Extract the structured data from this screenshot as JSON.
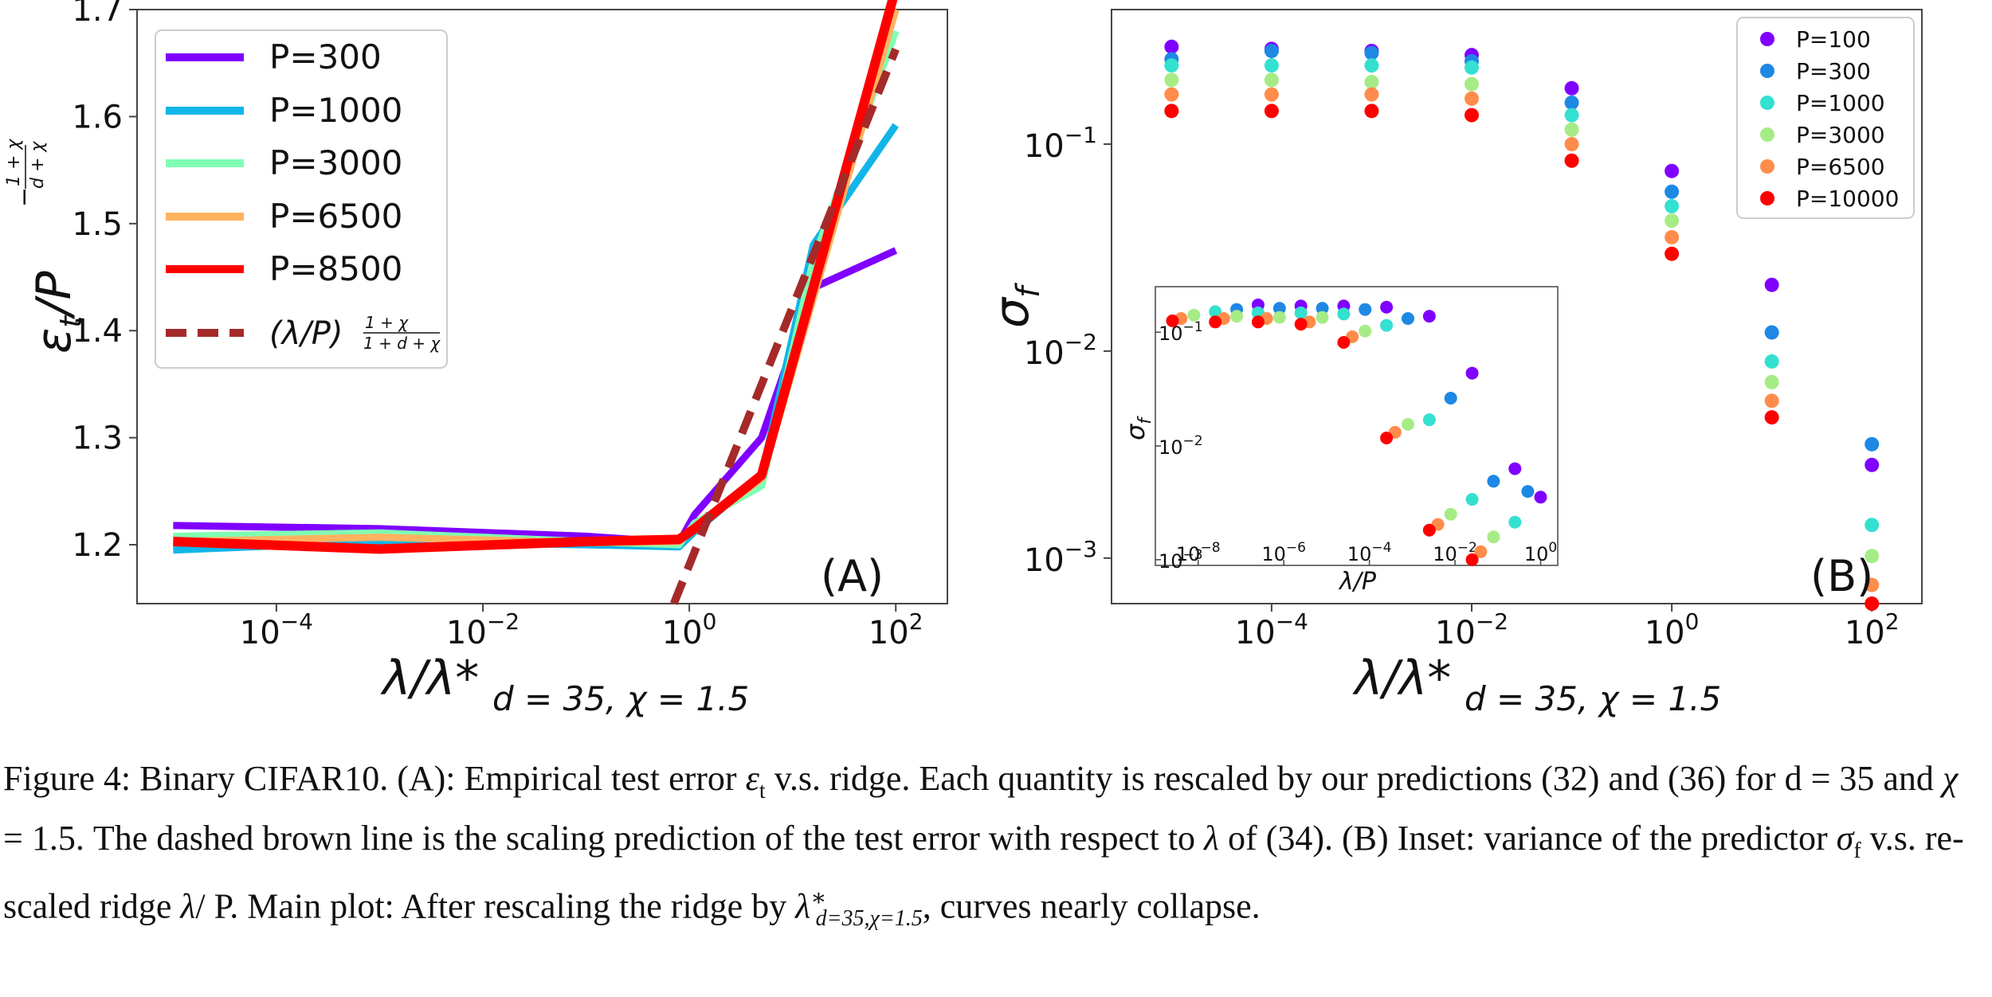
{
  "chart_data": [
    {
      "type": "line",
      "panel_label": "(A)",
      "xlabel": "λ/λ*",
      "xlabel_sub": "d = 35, χ = 1.5",
      "ylabel": "ε",
      "ylabel_sub": "t",
      "ylabel_den": "/P",
      "ylabel_exp_num": "1 + χ",
      "ylabel_exp_den": "d + χ",
      "xscale": "log",
      "xlim_exp": [
        -5.35,
        2.5
      ],
      "ylim": [
        1.145,
        1.7
      ],
      "xticks": [
        {
          "base": "10",
          "exp": "−4",
          "v": -4
        },
        {
          "base": "10",
          "exp": "−2",
          "v": -2
        },
        {
          "base": "10",
          "exp": "0",
          "v": 0
        },
        {
          "base": "10",
          "exp": "2",
          "v": 2
        }
      ],
      "yticks": [
        "1.2",
        "1.3",
        "1.4",
        "1.5",
        "1.6",
        "1.7"
      ],
      "legend_position": "top-left",
      "series": [
        {
          "name": "P=300",
          "color": "#7f00ff",
          "x_exp": [
            -5.0,
            -3.0,
            -1.0,
            -0.1,
            0.05,
            0.7,
            1.2,
            2.0
          ],
          "values": [
            1.218,
            1.215,
            1.208,
            1.202,
            1.228,
            1.3,
            1.44,
            1.475
          ]
        },
        {
          "name": "P=1000",
          "color": "#12b5e8",
          "x_exp": [
            -5.0,
            -3.0,
            -1.0,
            -0.1,
            0.05,
            0.7,
            1.2,
            2.0
          ],
          "values": [
            1.195,
            1.203,
            1.2,
            1.198,
            1.212,
            1.265,
            1.48,
            1.592
          ]
        },
        {
          "name": "P=3000",
          "color": "#80ffb4",
          "x_exp": [
            -5.0,
            -3.0,
            -1.0,
            -0.1,
            0.05,
            0.7,
            1.2,
            2.0
          ],
          "values": [
            1.208,
            1.211,
            1.203,
            1.2,
            1.22,
            1.255,
            1.465,
            1.68
          ]
        },
        {
          "name": "P=6500",
          "color": "#ffb360",
          "x_exp": [
            -5.0,
            -3.0,
            -1.0,
            -0.1,
            0.05,
            0.7,
            1.2,
            2.0
          ],
          "values": [
            1.203,
            1.207,
            1.202,
            1.203,
            1.215,
            1.262,
            1.43,
            1.7
          ]
        },
        {
          "name": "P=8500",
          "color": "#ff0000",
          "x_exp": [
            -5.0,
            -3.0,
            -1.0,
            -0.1,
            0.05,
            0.7,
            1.2,
            2.0
          ],
          "values": [
            1.203,
            1.196,
            1.203,
            1.205,
            1.215,
            1.265,
            1.44,
            1.72
          ]
        }
      ],
      "scaling_line": {
        "name": "(λ/P)",
        "exp_num": "1 + χ",
        "exp_den": "1 + d + χ",
        "color": "#a52a2a",
        "x_exp": [
          -0.15,
          2.0
        ],
        "values": [
          1.145,
          1.663
        ]
      }
    },
    {
      "type": "scatter",
      "panel_label": "(B)",
      "xlabel": "λ/λ*",
      "xlabel_sub": "d = 35, χ = 1.5",
      "ylabel": "σ",
      "ylabel_sub": "f",
      "xscale": "log",
      "yscale": "log",
      "xlim_exp": [
        -5.6,
        2.5
      ],
      "ylim_exp": [
        -3.22,
        -0.35
      ],
      "xticks": [
        {
          "base": "10",
          "exp": "−4",
          "v": -4
        },
        {
          "base": "10",
          "exp": "−2",
          "v": -2
        },
        {
          "base": "10",
          "exp": "0",
          "v": 0
        },
        {
          "base": "10",
          "exp": "2",
          "v": 2
        }
      ],
      "yticks": [
        {
          "base": "10",
          "exp": "−3",
          "v": -3
        },
        {
          "base": "10",
          "exp": "−2",
          "v": -2
        },
        {
          "base": "10",
          "exp": "−1",
          "v": -1
        }
      ],
      "legend_position": "top-right",
      "series": [
        {
          "name": "P=100",
          "color": "#7f00ff",
          "x_exp": [
            -5.0,
            -4.0,
            -3.0,
            -2.0,
            -1.0,
            0.0,
            1.0,
            2.0
          ],
          "y_exp": [
            -0.53,
            -0.54,
            -0.55,
            -0.57,
            -0.73,
            -1.13,
            -1.68,
            -2.55
          ]
        },
        {
          "name": "P=300",
          "color": "#1e88e5",
          "x_exp": [
            -5.0,
            -4.0,
            -3.0,
            -2.0,
            -1.0,
            0.0,
            1.0,
            2.0
          ],
          "y_exp": [
            -0.59,
            -0.55,
            -0.56,
            -0.6,
            -0.8,
            -1.23,
            -1.91,
            -2.45
          ]
        },
        {
          "name": "P=1000",
          "color": "#34e0d0",
          "x_exp": [
            -5.0,
            -4.0,
            -3.0,
            -2.0,
            -1.0,
            0.0,
            1.0,
            2.0
          ],
          "y_exp": [
            -0.62,
            -0.62,
            -0.62,
            -0.63,
            -0.86,
            -1.3,
            -2.05,
            -2.84
          ]
        },
        {
          "name": "P=3000",
          "color": "#a6ec86",
          "x_exp": [
            -5.0,
            -4.0,
            -3.0,
            -2.0,
            -1.0,
            0.0,
            1.0,
            2.0
          ],
          "y_exp": [
            -0.69,
            -0.69,
            -0.7,
            -0.71,
            -0.93,
            -1.37,
            -2.15,
            -2.99
          ]
        },
        {
          "name": "P=6500",
          "color": "#ff8c4a",
          "x_exp": [
            -5.0,
            -4.0,
            -3.0,
            -2.0,
            -1.0,
            0.0,
            1.0,
            2.0
          ],
          "y_exp": [
            -0.76,
            -0.76,
            -0.76,
            -0.78,
            -1.0,
            -1.45,
            -2.24,
            -3.13
          ]
        },
        {
          "name": "P=10000",
          "color": "#ff0000",
          "x_exp": [
            -5.0,
            -4.0,
            -3.0,
            -2.0,
            -1.0,
            0.0,
            1.0,
            2.0
          ],
          "y_exp": [
            -0.84,
            -0.84,
            -0.84,
            -0.86,
            -1.08,
            -1.53,
            -2.32,
            -3.22
          ]
        }
      ],
      "inset": {
        "xlabel": "λ/P",
        "ylabel": "σ",
        "ylabel_sub": "f",
        "xlim_exp": [
          -9.0,
          0.4
        ],
        "ylim_exp": [
          -3.05,
          -0.6
        ],
        "xticks": [
          {
            "base": "10",
            "exp": "−8",
            "v": -8
          },
          {
            "base": "10",
            "exp": "−6",
            "v": -6
          },
          {
            "base": "10",
            "exp": "−4",
            "v": -4
          },
          {
            "base": "10",
            "exp": "−2",
            "v": -2
          },
          {
            "base": "10",
            "exp": "0",
            "v": 0
          }
        ],
        "yticks": [
          {
            "base": "10",
            "exp": "−3",
            "v": -3
          },
          {
            "base": "10",
            "exp": "−2",
            "v": -2
          },
          {
            "base": "10",
            "exp": "−1",
            "v": -1
          }
        ],
        "series": [
          {
            "name": "P=100",
            "x_exp": [
              -6.6,
              -5.6,
              -4.6,
              -3.6,
              -2.6,
              -1.6,
              -0.6,
              0.0
            ],
            "y_exp": [
              -0.76,
              -0.77,
              -0.77,
              -0.78,
              -0.86,
              -1.36,
              -2.2,
              -2.45
            ]
          },
          {
            "name": "P=300",
            "x_exp": [
              -7.1,
              -6.1,
              -5.1,
              -4.1,
              -3.1,
              -2.1,
              -1.1,
              -0.3
            ],
            "y_exp": [
              -0.8,
              -0.79,
              -0.79,
              -0.8,
              -0.88,
              -1.58,
              -2.31,
              -2.4
            ]
          },
          {
            "name": "P=1000",
            "x_exp": [
              -7.6,
              -6.6,
              -5.6,
              -4.6,
              -3.6,
              -2.6,
              -1.6,
              -0.6
            ],
            "y_exp": [
              -0.82,
              -0.83,
              -0.83,
              -0.84,
              -0.94,
              -1.77,
              -2.47,
              -2.67
            ]
          },
          {
            "name": "P=3000",
            "x_exp": [
              -8.1,
              -7.1,
              -6.1,
              -5.1,
              -4.1,
              -3.1,
              -2.1,
              -1.1
            ],
            "y_exp": [
              -0.85,
              -0.86,
              -0.87,
              -0.87,
              -0.99,
              -1.81,
              -2.6,
              -2.8
            ]
          },
          {
            "name": "P=6500",
            "x_exp": [
              -8.4,
              -7.4,
              -6.4,
              -5.4,
              -4.4,
              -3.4,
              -2.4,
              -1.4
            ],
            "y_exp": [
              -0.88,
              -0.88,
              -0.88,
              -0.91,
              -1.04,
              -1.88,
              -2.69,
              -2.93
            ]
          },
          {
            "name": "P=10000",
            "x_exp": [
              -8.6,
              -7.6,
              -6.6,
              -5.6,
              -4.6,
              -3.6,
              -2.6,
              -1.6
            ],
            "y_exp": [
              -0.9,
              -0.91,
              -0.91,
              -0.93,
              -1.09,
              -1.93,
              -2.74,
              -3.0
            ]
          }
        ]
      }
    }
  ],
  "caption": {
    "fig_label": "Figure 4:",
    "part1": " Binary CIFAR10. (A): Empirical test error ",
    "eps": "ε",
    "eps_sub": "t",
    "part2": " v.s.  ridge. Each quantity is rescaled by our predictions (32) and (36) for d = 35 and ",
    "chi": "χ",
    "part3": " = 1.5. The dashed brown line is the scaling prediction of the test error with respect to ",
    "lam": "λ",
    "part4": " of (34). (B) Inset: variance of the predictor ",
    "sigma": "σ",
    "sigma_sub": "f",
    "part5": " v.s. re-scaled ridge ",
    "lam2": "λ",
    "part6": "/ P. Main plot: After rescaling the ridge by ",
    "lam3": "λ",
    "lam3_sup": "∗",
    "lam3_sub": "d=35,χ=1.5",
    "part7": ", curves nearly collapse."
  }
}
